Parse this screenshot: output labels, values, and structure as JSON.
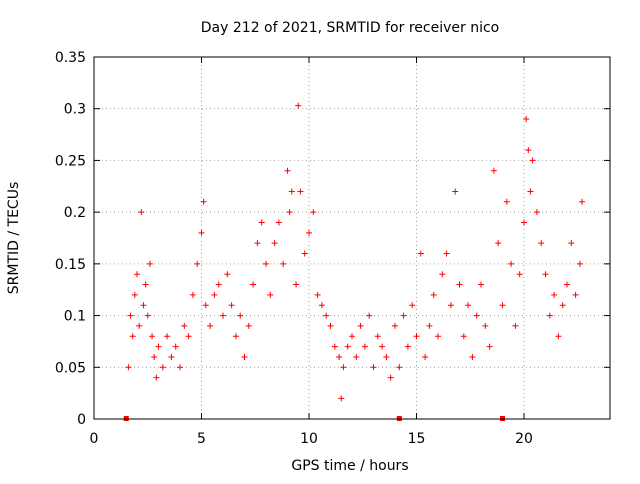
{
  "chart_data": {
    "type": "scatter",
    "title": "Day 212 of 2021, SRMTID for receiver nico",
    "xlabel": "GPS time / hours",
    "ylabel": "SRMTID / TECUs",
    "xlim": [
      0,
      24
    ],
    "ylim": [
      0,
      0.35
    ],
    "x_ticks": [
      0,
      5,
      10,
      15,
      20
    ],
    "x_tick_labels": [
      "0",
      "5",
      "10",
      "15",
      "20"
    ],
    "y_ticks": [
      0,
      0.05,
      0.1,
      0.15,
      0.2,
      0.25,
      0.3,
      0.35
    ],
    "y_tick_labels": [
      "0",
      "0.05",
      "0.1",
      "0.15",
      "0.2",
      "0.25",
      "0.3",
      "0.35"
    ],
    "grid": true,
    "marker": "+",
    "color": "#ff0000",
    "series": [
      {
        "name": "SRMTID",
        "points": [
          [
            1.6,
            0.05
          ],
          [
            1.7,
            0.1
          ],
          [
            1.8,
            0.08
          ],
          [
            1.9,
            0.12
          ],
          [
            2.0,
            0.14
          ],
          [
            2.1,
            0.09
          ],
          [
            2.2,
            0.2
          ],
          [
            2.3,
            0.11
          ],
          [
            2.4,
            0.13
          ],
          [
            2.5,
            0.1
          ],
          [
            2.6,
            0.15
          ],
          [
            2.7,
            0.08
          ],
          [
            2.8,
            0.06
          ],
          [
            2.9,
            0.04
          ],
          [
            3.0,
            0.07
          ],
          [
            3.2,
            0.05
          ],
          [
            3.4,
            0.08
          ],
          [
            3.6,
            0.06
          ],
          [
            3.8,
            0.07
          ],
          [
            4.0,
            0.05
          ],
          [
            4.2,
            0.09
          ],
          [
            4.4,
            0.08
          ],
          [
            4.6,
            0.12
          ],
          [
            4.8,
            0.15
          ],
          [
            5.0,
            0.18
          ],
          [
            5.1,
            0.21
          ],
          [
            5.2,
            0.11
          ],
          [
            5.4,
            0.09
          ],
          [
            5.6,
            0.12
          ],
          [
            5.8,
            0.13
          ],
          [
            6.0,
            0.1
          ],
          [
            6.2,
            0.14
          ],
          [
            6.4,
            0.11
          ],
          [
            6.6,
            0.08
          ],
          [
            6.8,
            0.1
          ],
          [
            7.0,
            0.06
          ],
          [
            7.2,
            0.09
          ],
          [
            7.4,
            0.13
          ],
          [
            7.6,
            0.17
          ],
          [
            7.8,
            0.19
          ],
          [
            8.0,
            0.15
          ],
          [
            8.2,
            0.12
          ],
          [
            8.4,
            0.17
          ],
          [
            8.6,
            0.19
          ],
          [
            8.8,
            0.15
          ],
          [
            9.0,
            0.24
          ],
          [
            9.1,
            0.2
          ],
          [
            9.2,
            0.22
          ],
          [
            9.4,
            0.13
          ],
          [
            9.5,
            0.303
          ],
          [
            9.6,
            0.22
          ],
          [
            9.8,
            0.16
          ],
          [
            10.0,
            0.18
          ],
          [
            10.2,
            0.2
          ],
          [
            10.4,
            0.12
          ],
          [
            10.6,
            0.11
          ],
          [
            10.8,
            0.1
          ],
          [
            11.0,
            0.09
          ],
          [
            11.2,
            0.07
          ],
          [
            11.4,
            0.06
          ],
          [
            11.5,
            0.02
          ],
          [
            11.6,
            0.05
          ],
          [
            11.8,
            0.07
          ],
          [
            12.0,
            0.08
          ],
          [
            12.2,
            0.06
          ],
          [
            12.4,
            0.09
          ],
          [
            12.6,
            0.07
          ],
          [
            12.8,
            0.1
          ],
          [
            13.0,
            0.05
          ],
          [
            13.2,
            0.08
          ],
          [
            13.4,
            0.07
          ],
          [
            13.6,
            0.06
          ],
          [
            13.8,
            0.04
          ],
          [
            14.0,
            0.09
          ],
          [
            14.2,
            0.05
          ],
          [
            14.4,
            0.1
          ],
          [
            14.6,
            0.07
          ],
          [
            14.8,
            0.11
          ],
          [
            15.0,
            0.08
          ],
          [
            15.2,
            0.16
          ],
          [
            15.4,
            0.06
          ],
          [
            15.6,
            0.09
          ],
          [
            15.8,
            0.12
          ],
          [
            16.0,
            0.08
          ],
          [
            16.2,
            0.14
          ],
          [
            16.4,
            0.16
          ],
          [
            16.6,
            0.11
          ],
          [
            16.8,
            0.22
          ],
          [
            17.0,
            0.13
          ],
          [
            17.2,
            0.08
          ],
          [
            17.4,
            0.11
          ],
          [
            17.6,
            0.06
          ],
          [
            17.8,
            0.1
          ],
          [
            18.0,
            0.13
          ],
          [
            18.2,
            0.09
          ],
          [
            18.4,
            0.07
          ],
          [
            18.6,
            0.24
          ],
          [
            18.8,
            0.17
          ],
          [
            19.0,
            0.11
          ],
          [
            19.2,
            0.21
          ],
          [
            19.4,
            0.15
          ],
          [
            19.6,
            0.09
          ],
          [
            19.8,
            0.14
          ],
          [
            20.0,
            0.19
          ],
          [
            20.1,
            0.29
          ],
          [
            20.2,
            0.26
          ],
          [
            20.3,
            0.22
          ],
          [
            20.4,
            0.25
          ],
          [
            20.6,
            0.2
          ],
          [
            20.8,
            0.17
          ],
          [
            21.0,
            0.14
          ],
          [
            21.2,
            0.1
          ],
          [
            21.4,
            0.12
          ],
          [
            21.6,
            0.08
          ],
          [
            21.8,
            0.11
          ],
          [
            22.0,
            0.13
          ],
          [
            22.2,
            0.17
          ],
          [
            22.4,
            0.12
          ],
          [
            22.6,
            0.15
          ],
          [
            22.7,
            0.21
          ]
        ]
      }
    ],
    "axis_markers_x": [
      1.5,
      14.2,
      19.0
    ]
  }
}
